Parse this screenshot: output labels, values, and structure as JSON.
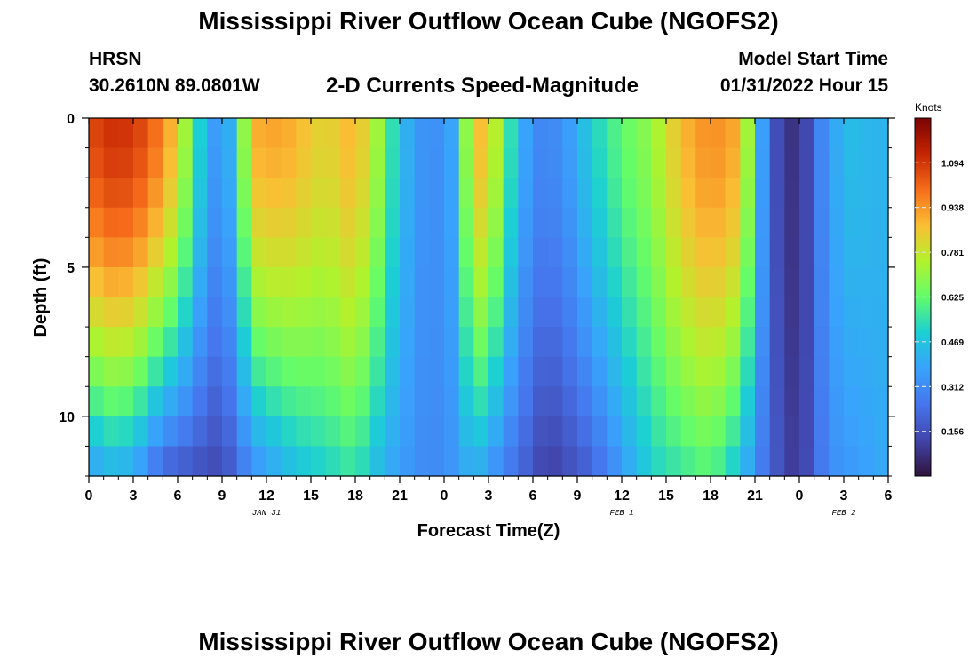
{
  "header": {
    "title": "Mississippi River Outflow Ocean Cube (NGOFS2)",
    "station": "HRSN",
    "coords": "30.2610N  89.0801W",
    "plot_title": "2-D Currents Speed-Magnitude",
    "model_label": "Model Start Time",
    "model_time": "01/31/2022 Hour 15"
  },
  "footer": {
    "title": "Mississippi River Outflow Ocean Cube (NGOFS2)"
  },
  "chart_data": {
    "type": "heatmap",
    "title": "2-D Currents Speed-Magnitude",
    "xlabel": "Forecast Time(Z)",
    "ylabel": "Depth (ft)",
    "x_hours_range": [
      0,
      54
    ],
    "x_tick_labels": [
      "0",
      "3",
      "6",
      "9",
      "12",
      "15",
      "18",
      "21",
      "0",
      "3",
      "6",
      "9",
      "12",
      "15",
      "18",
      "21",
      "0",
      "3",
      "6"
    ],
    "date_labels": [
      {
        "text": "JAN 31",
        "hour": 12
      },
      {
        "text": "FEB 1",
        "hour": 36
      },
      {
        "text": "FEB 2",
        "hour": 51
      }
    ],
    "y_range": [
      0,
      12
    ],
    "y_ticks": [
      0,
      5,
      10
    ],
    "y_inverted": true,
    "colorbar": {
      "unit": "Knots",
      "range": [
        0.0,
        1.25
      ],
      "ticks": [
        0.156,
        0.312,
        0.469,
        0.625,
        0.781,
        0.938,
        1.094
      ],
      "tick_labels": [
        "0.156",
        "0.312",
        "0.469",
        "0.625",
        "0.781",
        "0.938",
        "1.094"
      ]
    },
    "depth_levels_ft": [
      0.0,
      1.0,
      2.0,
      3.0,
      4.0,
      5.0,
      6.0,
      7.0,
      8.0,
      9.0,
      10.0,
      11.0,
      12.0
    ],
    "surface_speed_by_hour": [
      {
        "hour": 0,
        "knots": 1.06
      },
      {
        "hour": 2,
        "knots": 1.12
      },
      {
        "hour": 4,
        "knots": 1.05
      },
      {
        "hour": 6,
        "knots": 0.85
      },
      {
        "hour": 7,
        "knots": 0.6
      },
      {
        "hour": 8,
        "knots": 0.4
      },
      {
        "hour": 9,
        "knots": 0.32
      },
      {
        "hour": 10,
        "knots": 0.5
      },
      {
        "hour": 11,
        "knots": 0.9
      },
      {
        "hour": 13,
        "knots": 0.92
      },
      {
        "hour": 16,
        "knots": 0.82
      },
      {
        "hour": 18,
        "knots": 0.9
      },
      {
        "hour": 19.5,
        "knots": 0.72
      },
      {
        "hour": 21,
        "knots": 0.45
      },
      {
        "hour": 23,
        "knots": 0.3
      },
      {
        "hour": 24.5,
        "knots": 0.38
      },
      {
        "hour": 26,
        "knots": 0.85
      },
      {
        "hour": 27,
        "knots": 0.9
      },
      {
        "hour": 28,
        "knots": 0.62
      },
      {
        "hour": 30,
        "knots": 0.3
      },
      {
        "hour": 32,
        "knots": 0.32
      },
      {
        "hour": 34,
        "knots": 0.5
      },
      {
        "hour": 36,
        "knots": 0.62
      },
      {
        "hour": 38,
        "knots": 0.7
      },
      {
        "hour": 40,
        "knots": 0.88
      },
      {
        "hour": 42,
        "knots": 0.96
      },
      {
        "hour": 44,
        "knots": 0.9
      },
      {
        "hour": 45,
        "knots": 0.55
      },
      {
        "hour": 46,
        "knots": 0.18
      },
      {
        "hour": 48,
        "knots": 0.05
      },
      {
        "hour": 49.5,
        "knots": 0.3
      },
      {
        "hour": 51,
        "knots": 0.45
      },
      {
        "hour": 54,
        "knots": 0.42
      }
    ],
    "bottom_speed_by_hour": [
      {
        "hour": 0,
        "knots": 0.35
      },
      {
        "hour": 1.5,
        "knots": 0.4
      },
      {
        "hour": 3,
        "knots": 0.38
      },
      {
        "hour": 5,
        "knots": 0.18
      },
      {
        "hour": 9,
        "knots": 0.13
      },
      {
        "hour": 11,
        "knots": 0.3
      },
      {
        "hour": 14,
        "knots": 0.45
      },
      {
        "hour": 18,
        "knots": 0.55
      },
      {
        "hour": 20,
        "knots": 0.4
      },
      {
        "hour": 23,
        "knots": 0.3
      },
      {
        "hour": 25,
        "knots": 0.35
      },
      {
        "hour": 26,
        "knots": 0.42
      },
      {
        "hour": 28,
        "knots": 0.28
      },
      {
        "hour": 31,
        "knots": 0.1
      },
      {
        "hour": 34,
        "knots": 0.2
      },
      {
        "hour": 38,
        "knots": 0.5
      },
      {
        "hour": 42,
        "knots": 0.6
      },
      {
        "hour": 44,
        "knots": 0.45
      },
      {
        "hour": 46,
        "knots": 0.2
      },
      {
        "hour": 48,
        "knots": 0.08
      },
      {
        "hour": 50,
        "knots": 0.32
      },
      {
        "hour": 54,
        "knots": 0.4
      }
    ],
    "grid": false
  }
}
